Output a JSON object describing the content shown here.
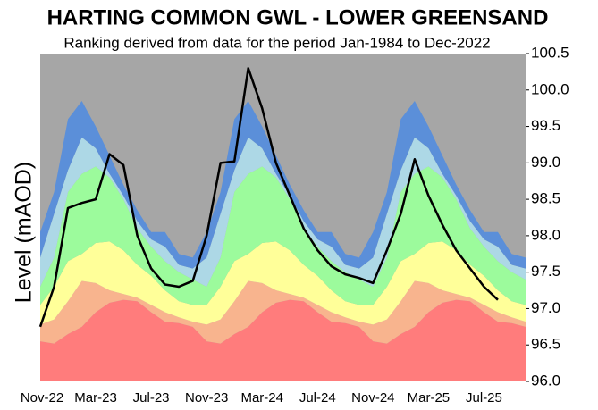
{
  "chart_data": {
    "type": "area",
    "title": "HARTING COMMON GWL - LOWER GREENSAND",
    "subtitle": "Ranking derived from data for the period Jan-1984 to Dec-2022",
    "y_label": "Level (mAOD)",
    "categories": [
      "Nov-22",
      null,
      null,
      null,
      "Mar-23",
      null,
      null,
      null,
      "Jul-23",
      null,
      null,
      null,
      "Nov-23",
      null,
      null,
      null,
      "Mar-24",
      null,
      null,
      null,
      "Jul-24",
      null,
      null,
      null,
      "Nov-24",
      null,
      null,
      null,
      "Mar-25",
      null,
      null,
      null,
      "Jul-25",
      null,
      null,
      null
    ],
    "ylim": [
      96.0,
      100.5
    ],
    "yticks": [
      {
        "value": 96.0,
        "label": "96.0"
      },
      96.5,
      {
        "value": 97.0,
        "label": "97.0"
      },
      97.5,
      {
        "value": 98.0,
        "label": "98.0"
      },
      98.5,
      {
        "value": 99.0,
        "label": "99.0"
      },
      99.5,
      {
        "value": 100.0,
        "label": "100.0"
      },
      100.5
    ],
    "background": "#a6a6a6",
    "series": [
      {
        "color": "#ff7c7c",
        "values": [
          96.55,
          96.52,
          96.65,
          96.75,
          96.95,
          97.08,
          97.12,
          97.1,
          96.95,
          96.82,
          96.8,
          96.75,
          96.55,
          96.52,
          96.65,
          96.75,
          96.95,
          97.08,
          97.12,
          97.1,
          96.95,
          96.82,
          96.8,
          96.75,
          96.55,
          96.52,
          96.65,
          96.75,
          96.95,
          97.08,
          97.12,
          97.1,
          96.95,
          96.82,
          96.8,
          96.75
        ]
      },
      {
        "color": "#f8b48e",
        "values": [
          96.78,
          96.85,
          97.1,
          97.38,
          97.35,
          97.25,
          97.2,
          97.15,
          97.05,
          96.95,
          96.88,
          96.82,
          96.78,
          96.85,
          97.1,
          97.38,
          97.35,
          97.25,
          97.2,
          97.15,
          97.05,
          96.95,
          96.88,
          96.82,
          96.78,
          96.85,
          97.1,
          97.38,
          97.35,
          97.25,
          97.2,
          97.15,
          97.05,
          96.95,
          96.88,
          96.82
        ]
      },
      {
        "color": "#ffff99",
        "values": [
          97.05,
          97.3,
          97.65,
          97.75,
          97.9,
          97.92,
          97.8,
          97.6,
          97.45,
          97.25,
          97.1,
          97.05,
          97.05,
          97.3,
          97.65,
          97.75,
          97.9,
          97.92,
          97.8,
          97.6,
          97.45,
          97.25,
          97.1,
          97.05,
          97.05,
          97.3,
          97.65,
          97.75,
          97.9,
          97.92,
          97.8,
          97.6,
          97.45,
          97.25,
          97.1,
          97.05
        ]
      },
      {
        "color": "#9cfb9c",
        "values": [
          97.3,
          97.7,
          98.6,
          98.85,
          98.95,
          98.8,
          98.5,
          98.1,
          97.85,
          97.65,
          97.5,
          97.4,
          97.3,
          97.7,
          98.6,
          98.85,
          98.95,
          98.8,
          98.5,
          98.1,
          97.85,
          97.65,
          97.5,
          97.4,
          97.3,
          97.7,
          98.6,
          98.85,
          98.95,
          98.8,
          98.5,
          98.1,
          97.85,
          97.65,
          97.5,
          97.4
        ]
      },
      {
        "color": "#add8e6",
        "values": [
          97.7,
          98.3,
          98.9,
          99.35,
          99.2,
          98.85,
          98.55,
          98.2,
          97.95,
          97.85,
          97.6,
          97.55,
          97.7,
          98.3,
          98.9,
          99.35,
          99.2,
          98.85,
          98.55,
          98.2,
          97.95,
          97.85,
          97.6,
          97.55,
          97.7,
          98.3,
          98.9,
          99.35,
          99.2,
          98.85,
          98.55,
          98.2,
          97.95,
          97.85,
          97.6,
          97.55
        ]
      },
      {
        "color": "#5b8fd9",
        "values": [
          98.05,
          98.6,
          99.6,
          99.85,
          99.5,
          99.1,
          98.7,
          98.35,
          98.05,
          98.05,
          97.75,
          97.7,
          98.05,
          98.6,
          99.6,
          99.85,
          99.5,
          99.1,
          98.7,
          98.35,
          98.05,
          98.05,
          97.75,
          97.7,
          98.05,
          98.6,
          99.6,
          99.85,
          99.5,
          99.1,
          98.7,
          98.35,
          98.05,
          98.05,
          97.75,
          97.7
        ]
      },
      {
        "type": "line",
        "color": "#000000",
        "values": [
          96.75,
          97.3,
          98.38,
          98.45,
          98.5,
          99.12,
          98.97,
          98.0,
          97.55,
          97.33,
          97.3,
          97.38,
          98.0,
          99.0,
          99.02,
          100.3,
          99.75,
          99.0,
          98.55,
          98.1,
          97.8,
          97.58,
          97.47,
          97.42,
          97.35,
          97.8,
          98.3,
          99.05,
          98.55,
          98.15,
          97.8,
          97.55,
          97.3,
          97.12,
          null,
          null
        ]
      }
    ]
  }
}
